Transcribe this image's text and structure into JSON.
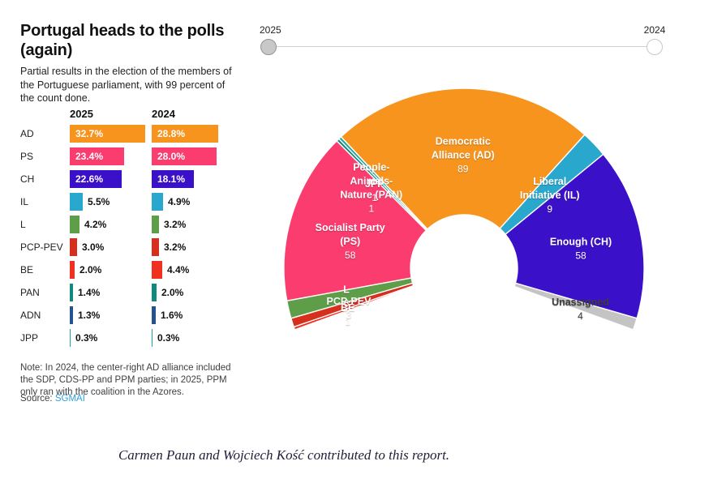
{
  "header": {
    "title": "Portugal heads to the polls (again)",
    "subtitle": "Partial results in the election of the members of the Portuguese parliament, with 99 percent of the count done."
  },
  "slider": {
    "left_label": "2025",
    "right_label": "2024",
    "selected": "2025"
  },
  "chart_data": [
    {
      "type": "bar",
      "columns": [
        "2025",
        "2024"
      ],
      "categories": [
        "AD",
        "PS",
        "CH",
        "IL",
        "L",
        "PCP-PEV",
        "BE",
        "PAN",
        "ADN",
        "JPP"
      ],
      "series": [
        {
          "name": "2025",
          "values": [
            32.7,
            23.4,
            22.6,
            5.5,
            4.2,
            3.0,
            2.0,
            1.4,
            1.3,
            0.3
          ]
        },
        {
          "name": "2024",
          "values": [
            28.8,
            28.0,
            18.1,
            4.9,
            3.2,
            3.2,
            4.4,
            2.0,
            1.6,
            0.3
          ]
        }
      ],
      "value_suffix": "%",
      "colors": [
        "#f7941e",
        "#fa3c6e",
        "#3b10c9",
        "#29a7cc",
        "#5f9e49",
        "#d62f1e",
        "#f0311f",
        "#12897f",
        "#24528c",
        "#1fa3a3"
      ],
      "xlim": [
        0,
        35
      ]
    },
    {
      "type": "hemicycle",
      "total_seats": 230,
      "start_angle_math": 200,
      "span_degrees": 220,
      "segments": [
        {
          "party": "BE",
          "label_lines": [
            "BE"
          ],
          "seats": 1,
          "color": "#f0311f",
          "label_radius": 152,
          "label_dy": 6
        },
        {
          "party": "PCP-PEV",
          "label_lines": [
            "PCP-PEV"
          ],
          "seats": 3,
          "color": "#d62f1e",
          "label_radius": 149,
          "label_dy": 4
        },
        {
          "party": "L",
          "label_lines": [
            "L"
          ],
          "seats": 6,
          "color": "#5f9e49",
          "label_radius": 149,
          "label_dy": 0
        },
        {
          "party": "PS",
          "label_lines": [
            "Socialist Party",
            "(PS)"
          ],
          "seats": 58,
          "color": "#fa3c6e",
          "label_radius": 147,
          "label_dy": 10
        },
        {
          "party": "PAN",
          "label_lines": [
            "People-",
            "Animals-",
            "Nature (PAN)"
          ],
          "seats": 1,
          "color": "#12897f",
          "label_radius": 163,
          "label_dy": 17
        },
        {
          "party": "JPP",
          "label_lines": [
            "JPP"
          ],
          "seats": 1,
          "color": "#25a49c",
          "label_radius": 160,
          "label_dy": 20
        },
        {
          "party": "AD",
          "label_lines": [
            "Democratic",
            "Alliance (AD)"
          ],
          "seats": 89,
          "color": "#f7941e",
          "label_radius": 140,
          "label_dy": 0
        },
        {
          "party": "IL",
          "label_lines": [
            "Liberal",
            "Initiative (IL)"
          ],
          "seats": 9,
          "color": "#29a7cc",
          "label_radius": 146,
          "label_dy": 10
        },
        {
          "party": "CH",
          "label_lines": [
            "Enough (CH)"
          ],
          "seats": 58,
          "color": "#3b10c9",
          "label_radius": 147,
          "label_dy": 5
        },
        {
          "party": "Unassigned",
          "label_lines": [
            "Unassigned"
          ],
          "seats": 4,
          "color": "#c4c4c4",
          "text_color": "#3d3d3d",
          "label_radius": 151,
          "label_dy": 3
        }
      ]
    }
  ],
  "note": {
    "text": "Note: In 2024, the center-right AD alliance included the SDP, CDS-PP and PPM parties; in 2025, PPM only ran with the coalition in the Azores."
  },
  "source": {
    "prefix": "Source: ",
    "name": "SGMAI"
  },
  "footer": {
    "credit": "Carmen Paun and Wojciech Kość contributed to this report."
  }
}
